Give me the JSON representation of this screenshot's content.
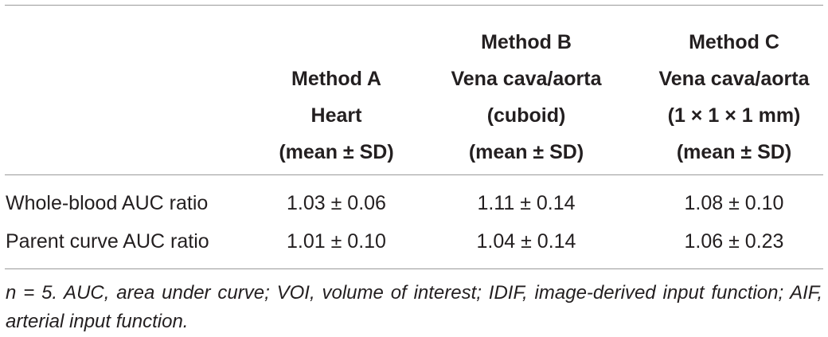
{
  "table": {
    "columns": [
      {
        "lines": [
          "Method A",
          "Heart",
          "(mean ± SD)"
        ]
      },
      {
        "lines": [
          "Method B",
          "Vena cava/aorta",
          "(cuboid)",
          "(mean ± SD)"
        ]
      },
      {
        "lines": [
          "Method C",
          "Vena cava/aorta",
          "(1 × 1 × 1 mm)",
          "(mean ± SD)"
        ]
      }
    ],
    "rows": [
      {
        "label": "Whole-blood AUC ratio",
        "a": "1.03 ± 0.06",
        "b": "1.11 ± 0.14",
        "c": "1.08 ± 0.10"
      },
      {
        "label": "Parent curve AUC ratio",
        "a": "1.01 ± 0.10",
        "b": "1.04 ± 0.14",
        "c": "1.06 ± 0.23"
      }
    ]
  },
  "footnote": "n = 5. AUC, area under curve; VOI, volume of interest; IDIF, image-derived input function; AIF, arterial input function."
}
